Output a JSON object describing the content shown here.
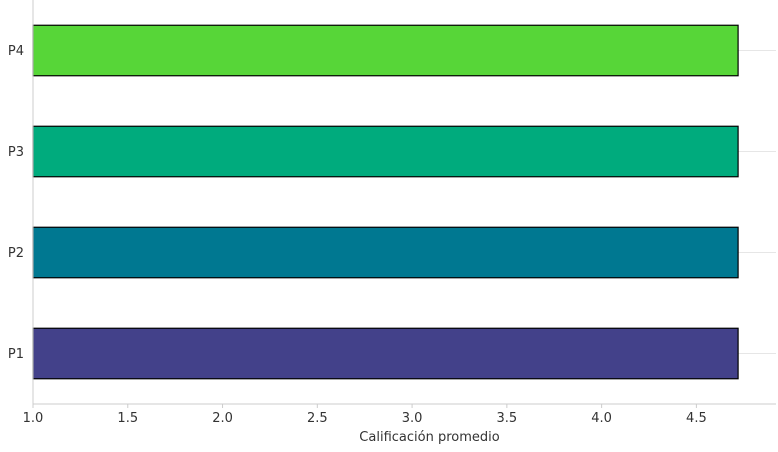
{
  "chart_data": {
    "type": "bar",
    "orientation": "horizontal",
    "categories": [
      "P1",
      "P2",
      "P3",
      "P4"
    ],
    "values": [
      4.72,
      4.72,
      4.72,
      4.72
    ],
    "bar_colors": [
      "#43418a",
      "#007891",
      "#00ab7d",
      "#57d638"
    ],
    "bar_edge_color": "#000000",
    "xlabel": "Calificación promedio",
    "ylabel": "",
    "title": "",
    "xlim": [
      1.0,
      4.92
    ],
    "xticks": [
      "1.0",
      "1.5",
      "2.0",
      "2.5",
      "3.0",
      "3.5",
      "4.0",
      "4.5"
    ],
    "grid": "horizontal lines at categories",
    "grid_color": "#e6e6e6",
    "axis_color": "#cccccc"
  }
}
